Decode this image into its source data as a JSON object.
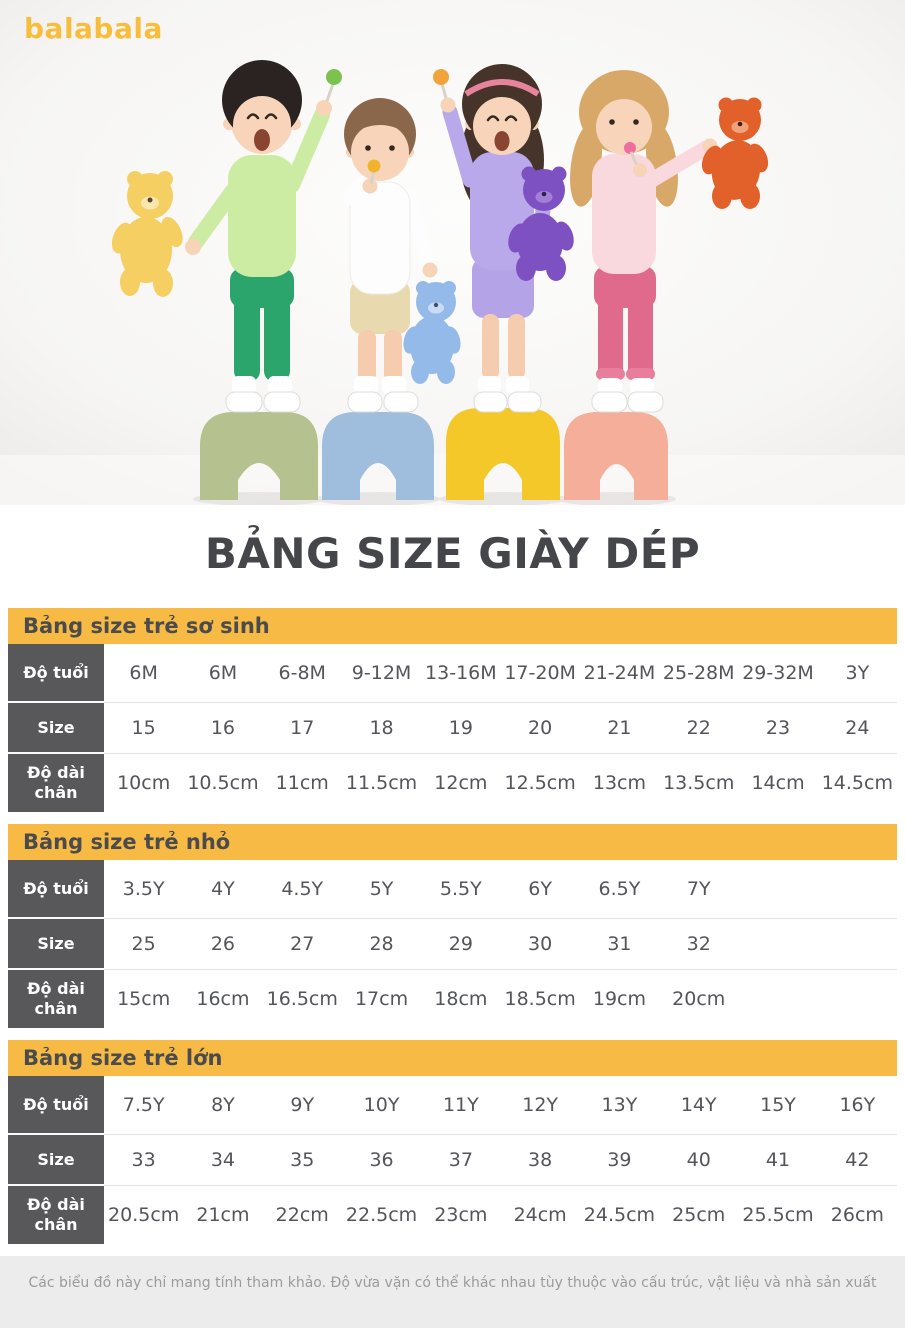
{
  "brand": {
    "logo_text": "balabala",
    "logo_color": "#f9bd3c"
  },
  "page_title": "BẢNG SIZE GIÀY DÉP",
  "hero": {
    "figures": [
      "boy-green-outfit",
      "boy-white-shirt-khaki-shorts",
      "girl-purple-outfit",
      "girl-pink-outfit"
    ],
    "teddy_bear_colors": [
      "#f6cf63",
      "#94bae9",
      "#7e51c3",
      "#e2602a"
    ],
    "stool_colors": [
      "#b5c18e",
      "#9fbedd",
      "#f5c829",
      "#f4ae99"
    ],
    "shirt_colors": [
      "#cdeca3",
      "#fdfdfd",
      "#b9a8ea",
      "#f9d9de"
    ],
    "pants_colors": [
      "#2ba56c",
      "#e9d9ae",
      "#b5a3e8",
      "#df6a8c"
    ]
  },
  "colors": {
    "accent_yellow": "#f7ba44",
    "label_cell_bg": "#58585b",
    "cell_text": "#54555a",
    "title_text": "#45464a",
    "footer_bg": "#ececec",
    "footer_text": "#9b9b9b"
  },
  "tables": [
    {
      "title": "Bảng size trẻ sơ sinh",
      "rows": [
        {
          "label": "Độ tuổi",
          "values": [
            "6M",
            "6M",
            "6-8M",
            "9-12M",
            "13-16M",
            "17-20M",
            "21-24M",
            "25-28M",
            "29-32M",
            "3Y"
          ]
        },
        {
          "label": "Size",
          "values": [
            "15",
            "16",
            "17",
            "18",
            "19",
            "20",
            "21",
            "22",
            "23",
            "24"
          ]
        },
        {
          "label": "Độ dài chân",
          "values": [
            "10cm",
            "10.5cm",
            "11cm",
            "11.5cm",
            "12cm",
            "12.5cm",
            "13cm",
            "13.5cm",
            "14cm",
            "14.5cm"
          ]
        }
      ]
    },
    {
      "title": "Bảng size trẻ nhỏ",
      "rows": [
        {
          "label": "Độ tuổi",
          "values": [
            "3.5Y",
            "4Y",
            "4.5Y",
            "5Y",
            "5.5Y",
            "6Y",
            "6.5Y",
            "7Y",
            "",
            ""
          ]
        },
        {
          "label": "Size",
          "values": [
            "25",
            "26",
            "27",
            "28",
            "29",
            "30",
            "31",
            "32",
            "",
            ""
          ]
        },
        {
          "label": "Độ dài chân",
          "values": [
            "15cm",
            "16cm",
            "16.5cm",
            "17cm",
            "18cm",
            "18.5cm",
            "19cm",
            "20cm",
            "",
            ""
          ]
        }
      ]
    },
    {
      "title": "Bảng size trẻ lớn",
      "rows": [
        {
          "label": "Độ tuổi",
          "values": [
            "7.5Y",
            "8Y",
            "9Y",
            "10Y",
            "11Y",
            "12Y",
            "13Y",
            "14Y",
            "15Y",
            "16Y"
          ]
        },
        {
          "label": "Size",
          "values": [
            "33",
            "34",
            "35",
            "36",
            "37",
            "38",
            "39",
            "40",
            "41",
            "42"
          ]
        },
        {
          "label": "Độ dài chân",
          "values": [
            "20.5cm",
            "21cm",
            "22cm",
            "22.5cm",
            "23cm",
            "24cm",
            "24.5cm",
            "25cm",
            "25.5cm",
            "26cm"
          ]
        }
      ]
    }
  ],
  "footer": {
    "note": "Các biểu đồ này chỉ mang tính tham khảo. Độ vừa vặn có thể khác nhau tùy thuộc vào cấu trúc, vật liệu và nhà sản xuất"
  }
}
